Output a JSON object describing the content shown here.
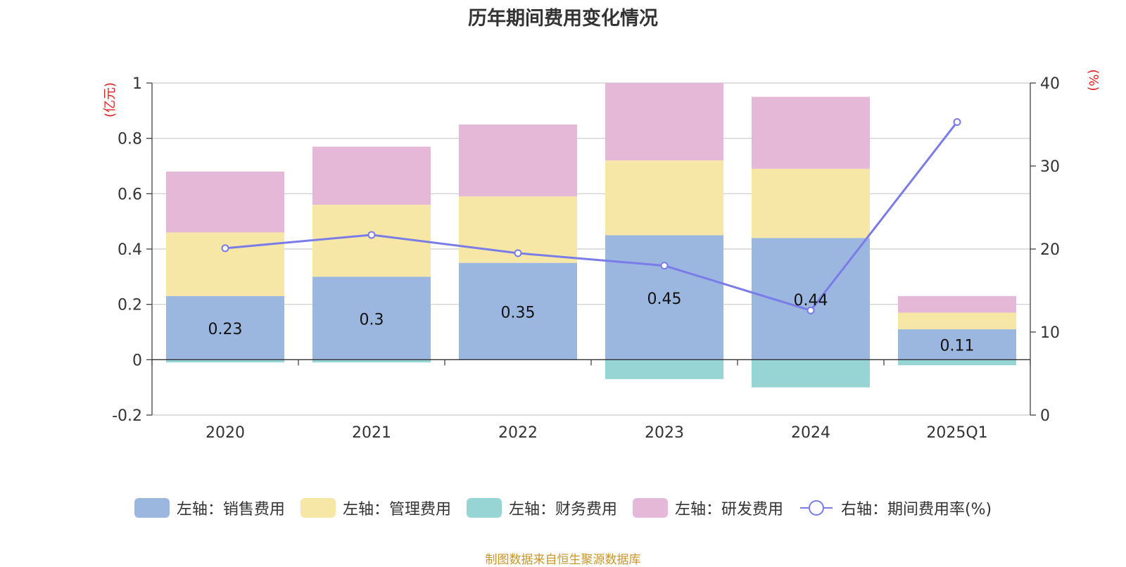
{
  "chart_data": {
    "type": "bar",
    "title": "历年期间费用变化情况",
    "categories": [
      "2020",
      "2021",
      "2022",
      "2023",
      "2024",
      "2025Q1"
    ],
    "left_axis": {
      "unit": "(亿元)",
      "ylim": [
        -0.2,
        1
      ],
      "ticks": [
        "-0.2",
        "0",
        "0.2",
        "0.4",
        "0.6",
        "0.8",
        "1"
      ]
    },
    "right_axis": {
      "unit": "(%)",
      "ylim": [
        0,
        40
      ],
      "ticks": [
        "0",
        "10",
        "20",
        "30",
        "40"
      ]
    },
    "series": [
      {
        "name": "左轴：销售费用",
        "axis": "left",
        "kind": "bar",
        "color": "#9bb7e0",
        "values": [
          0.23,
          0.3,
          0.35,
          0.45,
          0.44,
          0.11
        ],
        "labels": [
          "0.23",
          "0.3",
          "0.35",
          "0.45",
          "0.44",
          "0.11"
        ]
      },
      {
        "name": "左轴：管理费用",
        "axis": "left",
        "kind": "bar",
        "color": "#f7e7a7",
        "values": [
          0.23,
          0.26,
          0.24,
          0.27,
          0.25,
          0.06
        ]
      },
      {
        "name": "左轴：财务费用",
        "axis": "left",
        "kind": "bar",
        "color": "#97d5d4",
        "values": [
          -0.01,
          -0.01,
          0.0,
          -0.07,
          -0.1,
          -0.02
        ]
      },
      {
        "name": "左轴：研发费用",
        "axis": "left",
        "kind": "bar",
        "color": "#e6b8d8",
        "values": [
          0.22,
          0.21,
          0.26,
          0.28,
          0.26,
          0.06
        ]
      },
      {
        "name": "右轴：期间费用率(%)",
        "axis": "right",
        "kind": "line",
        "color": "#7a7ce8",
        "values": [
          20.1,
          21.7,
          19.5,
          18.0,
          12.6,
          35.3
        ]
      }
    ],
    "grid": true,
    "legend_position": "bottom"
  },
  "source_note": "制图数据来自恒生聚源数据库"
}
